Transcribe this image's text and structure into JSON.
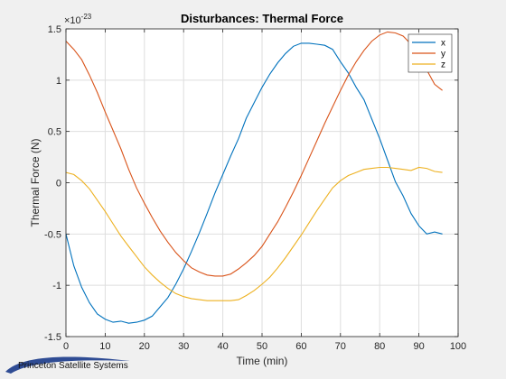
{
  "chart_data": {
    "type": "line",
    "title": "Disturbances: Thermal Force",
    "xlabel": "Time (min)",
    "ylabel": "Thermal Force (N)",
    "y_multiplier_label": "×10",
    "y_multiplier_exponent": "-23",
    "xlim": [
      0,
      100
    ],
    "ylim": [
      -1.5,
      1.5
    ],
    "xticks": [
      "0",
      "10",
      "20",
      "30",
      "40",
      "50",
      "60",
      "70",
      "80",
      "90",
      "100"
    ],
    "yticks": [
      "-1.5",
      "-1",
      "-0.5",
      "0",
      "0.5",
      "1",
      "1.5"
    ],
    "grid": true,
    "legend_position": "top-right",
    "x": [
      0,
      2,
      4,
      6,
      8,
      10,
      12,
      14,
      16,
      18,
      20,
      22,
      24,
      26,
      28,
      30,
      32,
      34,
      36,
      38,
      40,
      42,
      44,
      46,
      48,
      50,
      52,
      54,
      56,
      58,
      60,
      62,
      64,
      66,
      68,
      70,
      72,
      74,
      76,
      78,
      80,
      82,
      84,
      86,
      88,
      90,
      92,
      94,
      96
    ],
    "series": [
      {
        "name": "x",
        "color": "#0072BD",
        "values": [
          -0.5,
          -0.81,
          -1.02,
          -1.17,
          -1.28,
          -1.33,
          -1.36,
          -1.35,
          -1.37,
          -1.36,
          -1.34,
          -1.3,
          -1.21,
          -1.12,
          -0.99,
          -0.84,
          -0.67,
          -0.49,
          -0.3,
          -0.1,
          0.08,
          0.26,
          0.43,
          0.63,
          0.78,
          0.93,
          1.06,
          1.17,
          1.26,
          1.33,
          1.36,
          1.36,
          1.35,
          1.34,
          1.3,
          1.18,
          1.07,
          0.93,
          0.81,
          0.62,
          0.43,
          0.22,
          0.01,
          -0.13,
          -0.3,
          -0.42,
          -0.5,
          -0.48,
          -0.5
        ]
      },
      {
        "name": "y",
        "color": "#D95319",
        "values": [
          1.38,
          1.3,
          1.2,
          1.05,
          0.88,
          0.69,
          0.51,
          0.33,
          0.13,
          -0.05,
          -0.2,
          -0.34,
          -0.47,
          -0.58,
          -0.68,
          -0.76,
          -0.83,
          -0.87,
          -0.9,
          -0.91,
          -0.91,
          -0.89,
          -0.84,
          -0.78,
          -0.71,
          -0.62,
          -0.5,
          -0.38,
          -0.24,
          -0.09,
          0.07,
          0.24,
          0.41,
          0.58,
          0.74,
          0.9,
          1.05,
          1.18,
          1.29,
          1.38,
          1.44,
          1.47,
          1.46,
          1.43,
          1.35,
          1.26,
          1.1,
          0.96,
          0.9
        ]
      },
      {
        "name": "z",
        "color": "#EDB120",
        "values": [
          0.1,
          0.08,
          0.02,
          -0.06,
          -0.17,
          -0.28,
          -0.4,
          -0.52,
          -0.62,
          -0.72,
          -0.82,
          -0.9,
          -0.97,
          -1.03,
          -1.08,
          -1.11,
          -1.13,
          -1.14,
          -1.15,
          -1.15,
          -1.15,
          -1.15,
          -1.14,
          -1.1,
          -1.05,
          -0.99,
          -0.92,
          -0.83,
          -0.73,
          -0.62,
          -0.51,
          -0.39,
          -0.27,
          -0.16,
          -0.05,
          0.02,
          0.07,
          0.1,
          0.13,
          0.14,
          0.15,
          0.15,
          0.14,
          0.13,
          0.12,
          0.15,
          0.14,
          0.11,
          0.1
        ]
      }
    ]
  },
  "logo": {
    "text": "Princeton Satellite Systems"
  }
}
